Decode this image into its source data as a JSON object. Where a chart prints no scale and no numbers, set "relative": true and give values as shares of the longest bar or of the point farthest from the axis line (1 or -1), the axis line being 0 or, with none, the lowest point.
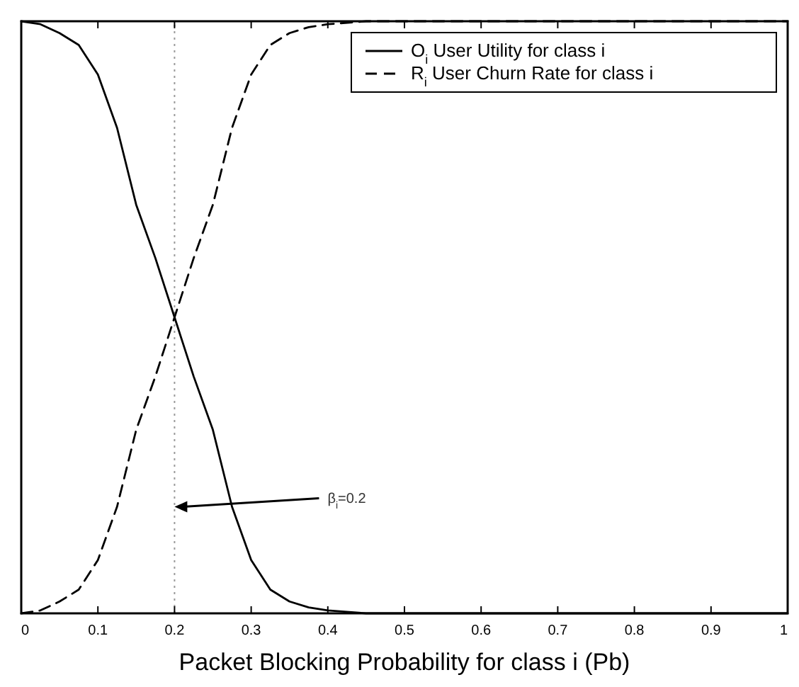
{
  "chart_data": {
    "type": "line",
    "relative": true,
    "xlabel": "Packet Blocking Probability for class i (Pb)",
    "x": [
      0,
      0.025,
      0.05,
      0.075,
      0.1,
      0.125,
      0.15,
      0.175,
      0.2,
      0.225,
      0.25,
      0.275,
      0.3,
      0.325,
      0.35,
      0.375,
      0.4,
      0.45,
      0.5,
      0.6,
      0.7,
      0.8,
      0.9,
      1
    ],
    "xlim": [
      0,
      1
    ],
    "xticks": [
      0,
      0.1,
      0.2,
      0.3,
      0.4,
      0.5,
      0.6,
      0.7,
      0.8,
      0.9,
      1
    ],
    "legend": "top right",
    "grid": false,
    "series": [
      {
        "name": "O$_{i}$ User Utility for class i",
        "color": "#000000",
        "line_style": "solid",
        "values": [
          1,
          0.995,
          0.98,
          0.96,
          0.91,
          0.82,
          0.69,
          0.6,
          0.5,
          0.4,
          0.31,
          0.18,
          0.09,
          0.04,
          0.02,
          0.01,
          0.005,
          0,
          0,
          0,
          0,
          0,
          0,
          0
        ]
      },
      {
        "name": "R$_{i}$ User Churn Rate for class i",
        "color": "#000000",
        "line_style": "dashed",
        "values": [
          0,
          0.005,
          0.02,
          0.04,
          0.09,
          0.18,
          0.31,
          0.4,
          0.5,
          0.6,
          0.69,
          0.82,
          0.91,
          0.96,
          0.98,
          0.99,
          0.995,
          1,
          1,
          1,
          1,
          1,
          1,
          1
        ]
      }
    ],
    "ref_lines": [
      {
        "axis": "x",
        "value": 0.2,
        "line_style": "dotted",
        "color": "#999999"
      }
    ],
    "annotations": [
      {
        "text": "β$_{i}$=0.2",
        "x": 0.2,
        "y": 0.18
      }
    ]
  }
}
